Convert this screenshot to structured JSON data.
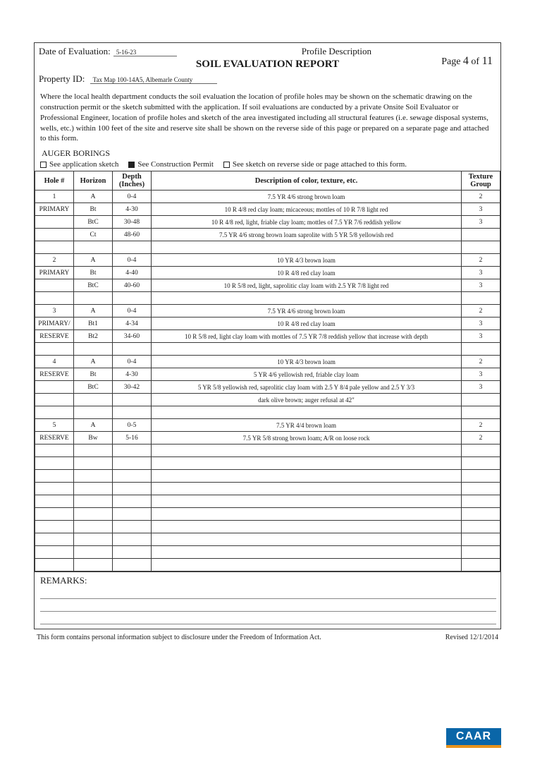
{
  "page": {
    "label_page": "Page",
    "current": "4",
    "label_of": "of",
    "total": "11"
  },
  "header": {
    "date_label": "Date of Evaluation:",
    "date_value": "5-16-23",
    "profile_desc": "Profile Description",
    "title": "SOIL EVALUATION REPORT",
    "property_label": "Property ID:",
    "property_value": "Tax Map 100-14A5, Albemarle County"
  },
  "body_text": "Where the local health department conducts the soil evaluation the location of profile holes may be shown on the schematic drawing on the construction permit or the sketch submitted with the application. If soil evaluations are conducted by a private Onsite Soil Evaluator or Professional Engineer, location of profile holes and sketch of the area investigated including all structural features (i.e. sewage disposal systems, wells, etc.) within 100 feet of the site and reserve site shall be shown on the reverse side of this page or prepared on a separate page and attached to this form.",
  "auger_label": "AUGER BORINGS",
  "checks": {
    "opt1": "See application sketch",
    "opt2": "See Construction Permit",
    "opt3": "See sketch on reverse side or page attached to this form."
  },
  "table": {
    "headers": {
      "hole": "Hole #",
      "horizon": "Horizon",
      "depth": "Depth (Inches)",
      "desc": "Description of color, texture, etc.",
      "texture": "Texture Group"
    },
    "rows": [
      {
        "hole": "1",
        "horz": "A",
        "depth": "0-4",
        "desc": "7.5 YR 4/6 strong brown loam",
        "tex": "2"
      },
      {
        "hole": "PRIMARY",
        "horz": "Bt",
        "depth": "4-30",
        "desc": "10 R 4/8 red clay loam; micaceous; mottles of 10 R 7/8 light red",
        "tex": "3"
      },
      {
        "hole": "",
        "horz": "BtC",
        "depth": "30-48",
        "desc": "10 R 4/8 red, light, friable clay loam; mottles of 7.5 YR 7/6 reddish yellow",
        "tex": "3"
      },
      {
        "hole": "",
        "horz": "Ct",
        "depth": "48-60",
        "desc": "7.5 YR 4/6 strong brown loam saprolite with 5 YR 5/8 yellowish red",
        "tex": ""
      },
      {
        "hole": "",
        "horz": "",
        "depth": "",
        "desc": "",
        "tex": ""
      },
      {
        "hole": "2",
        "horz": "A",
        "depth": "0-4",
        "desc": "10 YR 4/3 brown loam",
        "tex": "2"
      },
      {
        "hole": "PRIMARY",
        "horz": "Bt",
        "depth": "4-40",
        "desc": "10 R 4/8 red clay loam",
        "tex": "3"
      },
      {
        "hole": "",
        "horz": "BtC",
        "depth": "40-60",
        "desc": "10 R 5/8 red, light, saprolitic clay loam with 2.5 YR 7/8 light red",
        "tex": "3"
      },
      {
        "hole": "",
        "horz": "",
        "depth": "",
        "desc": "",
        "tex": ""
      },
      {
        "hole": "3",
        "horz": "A",
        "depth": "0-4",
        "desc": "7.5 YR 4/6 strong brown loam",
        "tex": "2"
      },
      {
        "hole": "PRIMARY/",
        "horz": "Bt1",
        "depth": "4-34",
        "desc": "10 R 4/8 red clay loam",
        "tex": "3"
      },
      {
        "hole": "RESERVE",
        "horz": "Bt2",
        "depth": "34-60",
        "desc": "10 R 5/8 red, light clay loam with mottles of 7.5 YR 7/8 reddish yellow that increase with depth",
        "tex": "3"
      },
      {
        "hole": "",
        "horz": "",
        "depth": "",
        "desc": "",
        "tex": ""
      },
      {
        "hole": "4",
        "horz": "A",
        "depth": "0-4",
        "desc": "10 YR 4/3 brown loam",
        "tex": "2"
      },
      {
        "hole": "RESERVE",
        "horz": "Bt",
        "depth": "4-30",
        "desc": "5 YR 4/6 yellowish red, friable clay loam",
        "tex": "3"
      },
      {
        "hole": "",
        "horz": "BtC",
        "depth": "30-42",
        "desc": "5 YR 5/8 yellowish red, saprolitic clay loam with 2.5 Y 8/4 pale yellow and 2.5 Y 3/3",
        "tex": "3"
      },
      {
        "hole": "",
        "horz": "",
        "depth": "",
        "desc": "dark olive brown; auger refusal at 42\"",
        "tex": ""
      },
      {
        "hole": "",
        "horz": "",
        "depth": "",
        "desc": "",
        "tex": ""
      },
      {
        "hole": "5",
        "horz": "A",
        "depth": "0-5",
        "desc": "7.5 YR 4/4 brown loam",
        "tex": "2"
      },
      {
        "hole": "RESERVE",
        "horz": "Bw",
        "depth": "5-16",
        "desc": "7.5 YR 5/8 strong brown loam; A/R on loose rock",
        "tex": "2"
      },
      {
        "hole": "",
        "horz": "",
        "depth": "",
        "desc": "",
        "tex": ""
      },
      {
        "hole": "",
        "horz": "",
        "depth": "",
        "desc": "",
        "tex": ""
      },
      {
        "hole": "",
        "horz": "",
        "depth": "",
        "desc": "",
        "tex": ""
      },
      {
        "hole": "",
        "horz": "",
        "depth": "",
        "desc": "",
        "tex": ""
      },
      {
        "hole": "",
        "horz": "",
        "depth": "",
        "desc": "",
        "tex": ""
      },
      {
        "hole": "",
        "horz": "",
        "depth": "",
        "desc": "",
        "tex": ""
      },
      {
        "hole": "",
        "horz": "",
        "depth": "",
        "desc": "",
        "tex": ""
      },
      {
        "hole": "",
        "horz": "",
        "depth": "",
        "desc": "",
        "tex": ""
      },
      {
        "hole": "",
        "horz": "",
        "depth": "",
        "desc": "",
        "tex": ""
      },
      {
        "hole": "",
        "horz": "",
        "depth": "",
        "desc": "",
        "tex": ""
      }
    ]
  },
  "remarks_label": "REMARKS:",
  "footer": {
    "left": "This form contains personal information subject to disclosure under the Freedom of Information Act.",
    "right": "Revised 12/1/2014"
  },
  "logo_text": "CAAR"
}
